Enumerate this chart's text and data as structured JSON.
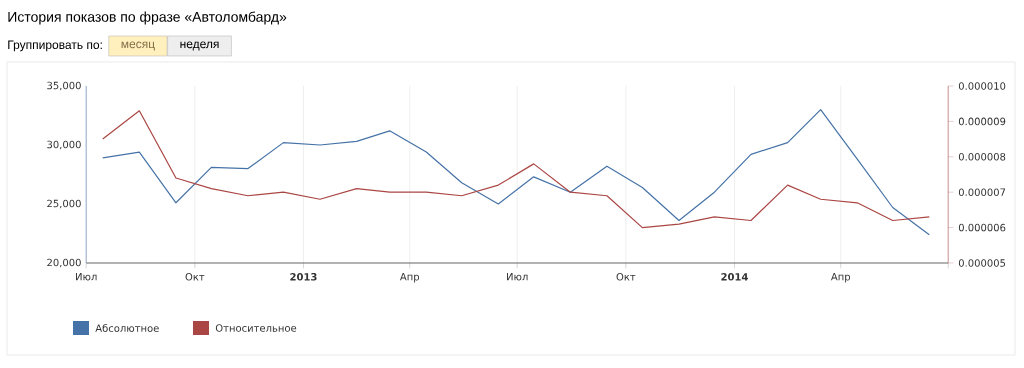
{
  "chart_data": {
    "type": "line",
    "title": "История показов по фразе «Автоломбард»",
    "annotations": [
      "Группировать по:",
      "месяц",
      "неделя"
    ],
    "x": [
      "2012-07-15",
      "2012-08-15",
      "2012-09-15",
      "2012-10-15",
      "2012-11-15",
      "2012-12-15",
      "2013-01-15",
      "2013-02-15",
      "2013-03-15",
      "2013-04-15",
      "2013-05-15",
      "2013-06-15",
      "2013-07-15",
      "2013-08-15",
      "2013-09-15",
      "2013-10-15",
      "2013-11-15",
      "2013-12-15",
      "2014-01-15",
      "2014-02-15",
      "2014-03-15",
      "2014-04-15",
      "2014-05-15",
      "2014-06-15"
    ],
    "series": [
      {
        "name": "Абсолютное",
        "color": "#4572a7",
        "values": [
          28900,
          29400,
          25100,
          28100,
          28000,
          30200,
          30000,
          30300,
          31200,
          29400,
          26800,
          25000,
          27300,
          26000,
          28200,
          26400,
          23600,
          26000,
          29200,
          30200,
          33000,
          28800,
          24700,
          22400
        ]
      },
      {
        "name": "Относительное",
        "color": "#aa4643",
        "axis": "y2",
        "values": [
          8.5e-06,
          9.3e-06,
          7.4e-06,
          7.1e-06,
          6.9e-06,
          7e-06,
          6.8e-06,
          7.1e-06,
          7e-06,
          7e-06,
          6.9e-06,
          7.2e-06,
          7.8e-06,
          7e-06,
          6.9e-06,
          6e-06,
          6.1e-06,
          6.3e-06,
          6.2e-06,
          7.2e-06,
          6.8e-06,
          6.7e-06,
          6.2e-06,
          6.3e-06
        ]
      }
    ],
    "xlim": [
      "2012-07-01",
      "2014-07-01"
    ],
    "xticks": [
      {
        "value": "2012-07-01",
        "label": "Июл"
      },
      {
        "value": "2012-10-01",
        "label": "Окт"
      },
      {
        "value": "2013-01-01",
        "label": "**2013**"
      },
      {
        "value": "2013-04-01",
        "label": "Апр"
      },
      {
        "value": "2013-07-01",
        "label": "Июл"
      },
      {
        "value": "2013-10-01",
        "label": "Окт"
      },
      {
        "value": "2014-01-01",
        "label": "**2014**"
      },
      {
        "value": "2014-04-01",
        "label": "Апр"
      },
      {
        "value": "2014-07-01",
        "label": null
      }
    ],
    "ylim": [
      20000,
      35000
    ],
    "yticks": [
      {
        "value": 20000,
        "label": "20,000"
      },
      {
        "value": 25000,
        "label": "25,000"
      },
      {
        "value": 30000,
        "label": "30,000"
      },
      {
        "value": 35000,
        "label": "35,000"
      }
    ],
    "y2lim": [
      5e-06,
      1e-05
    ],
    "y2ticks": [
      {
        "value": 5e-06,
        "label": "0.000005"
      },
      {
        "value": 6e-06,
        "label": "0.000006"
      },
      {
        "value": 7e-06,
        "label": "0.000007"
      },
      {
        "value": 8e-06,
        "label": "0.000008"
      },
      {
        "value": 9e-06,
        "label": "0.000009"
      },
      {
        "value": 1e-05,
        "label": "0.000010"
      }
    ],
    "grid": "x",
    "legend": "bottom",
    "marker": "none",
    "line_style": "solid"
  }
}
